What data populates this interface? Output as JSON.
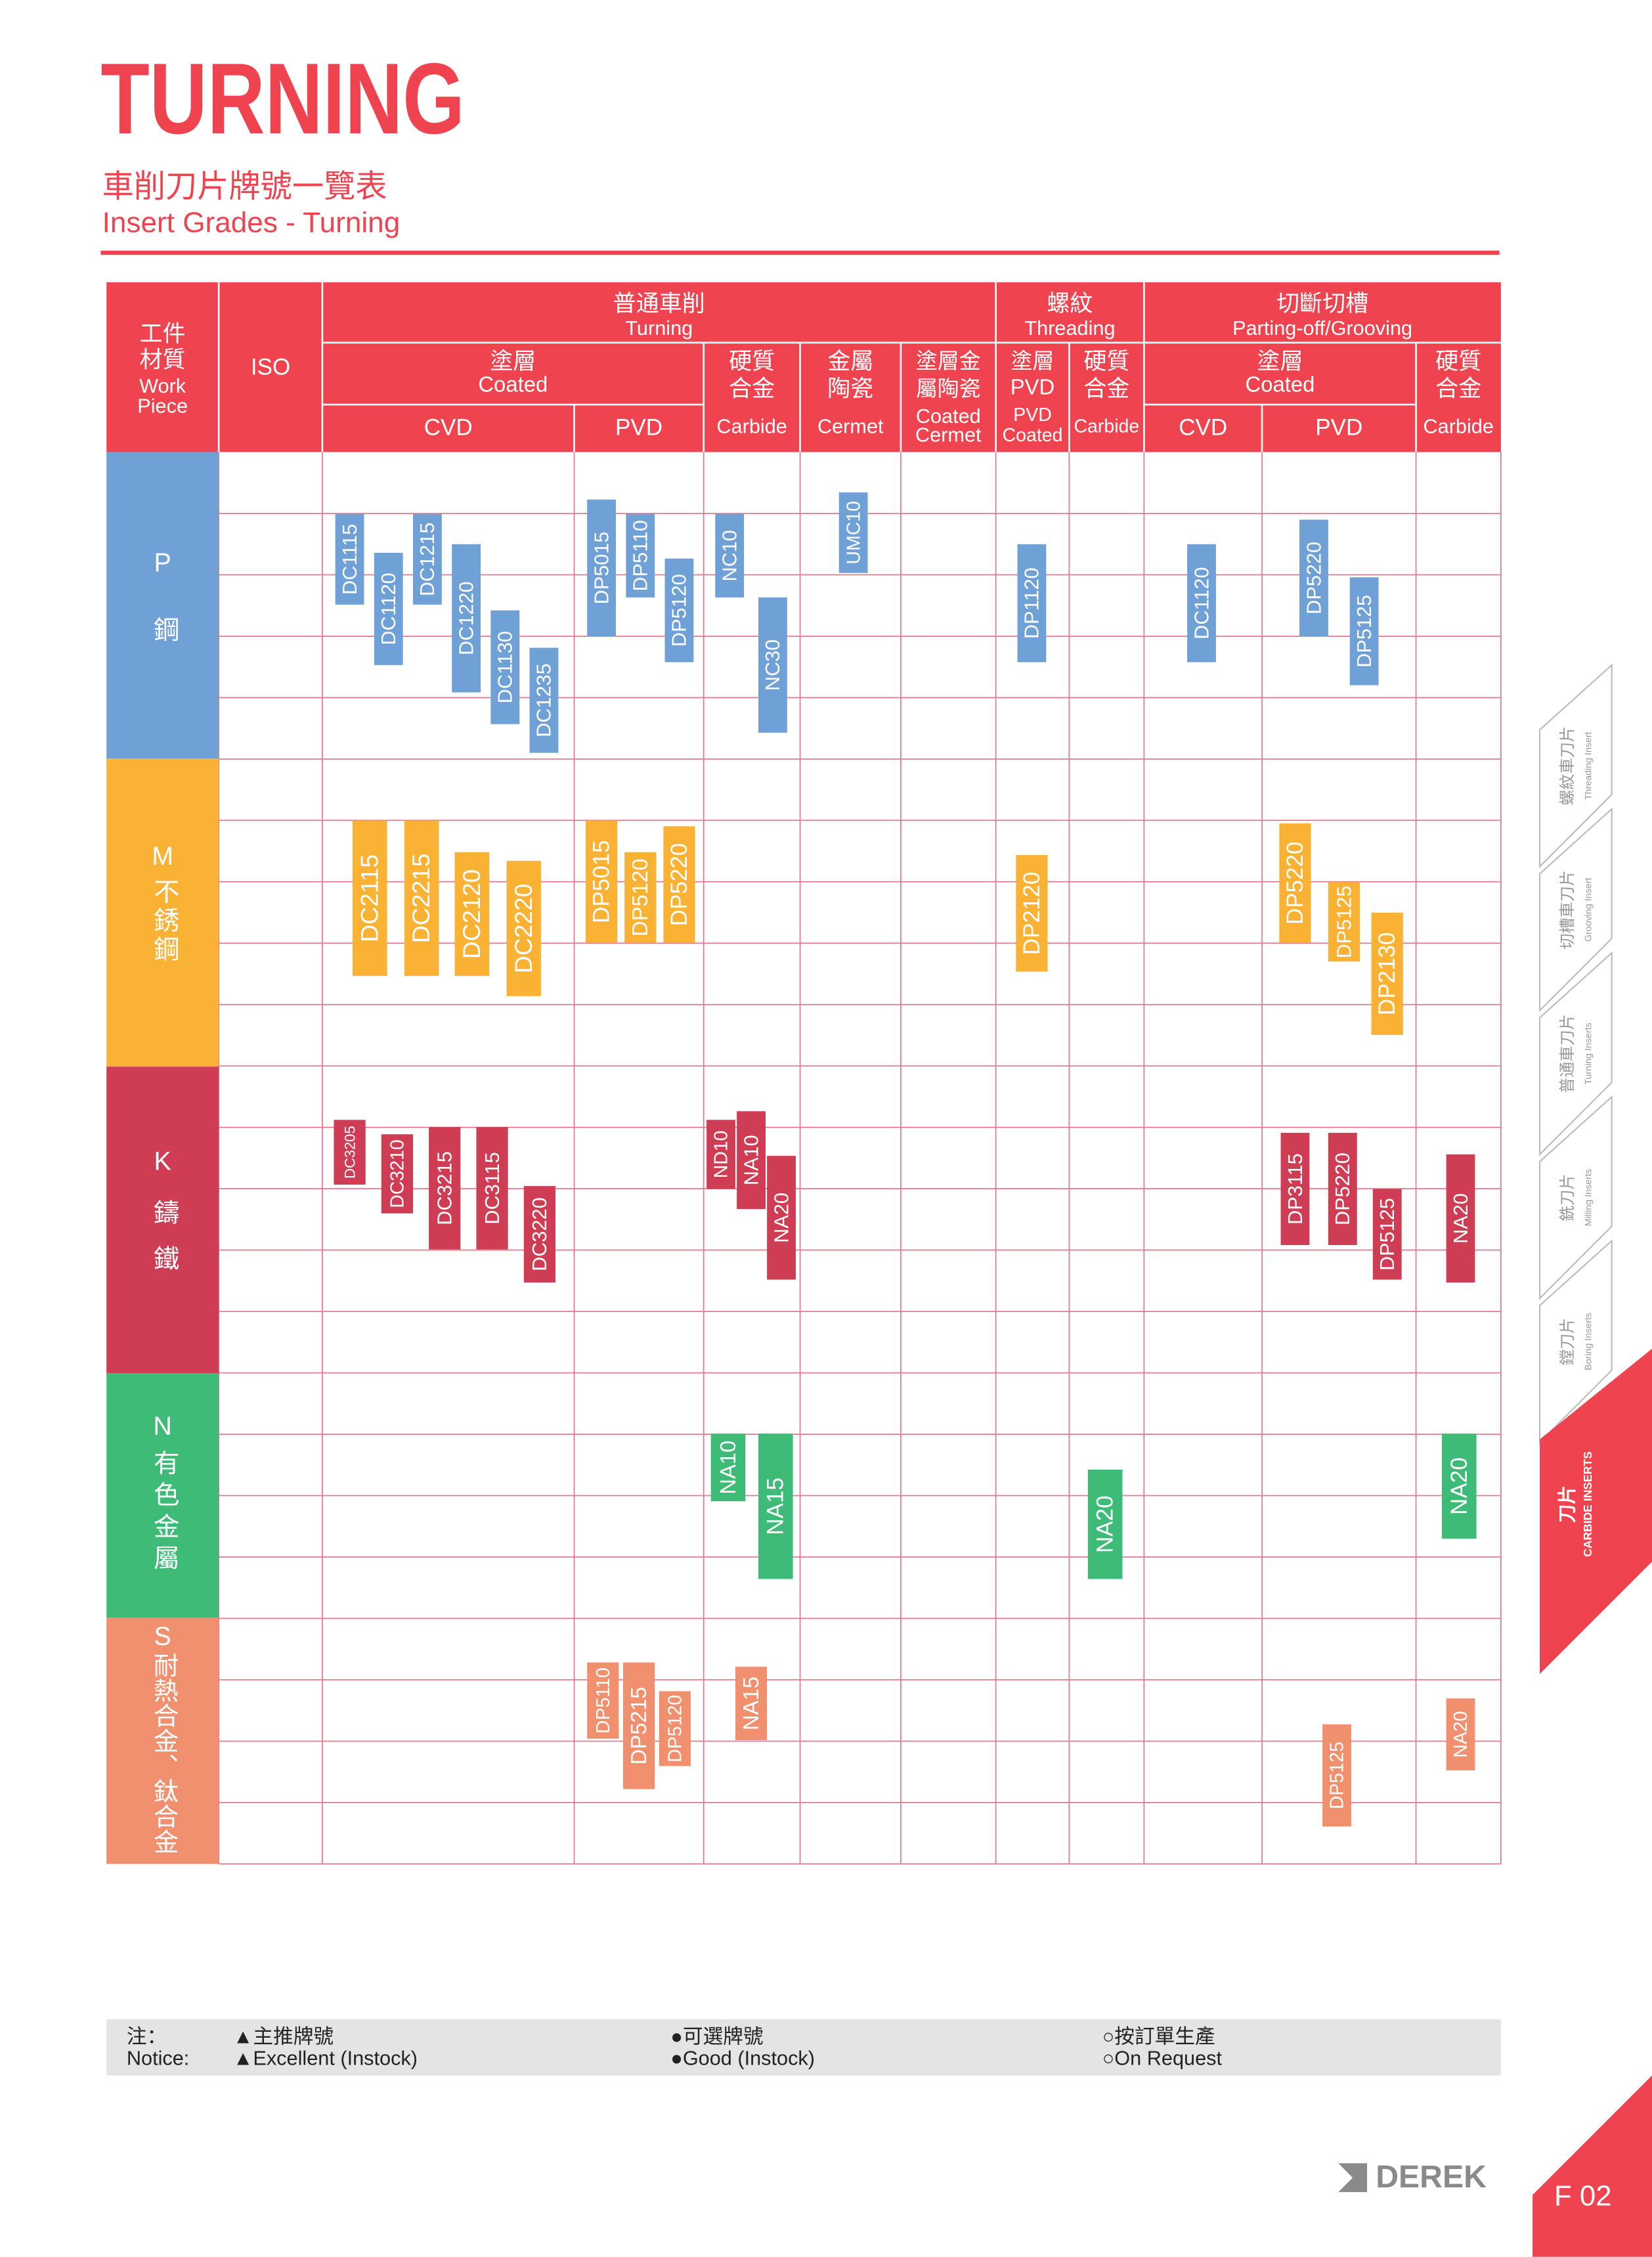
{
  "header": {
    "title": "TURNING",
    "subtitle_zh": "車削刀片牌號一覽表",
    "subtitle_en": "Insert Grades - Turning"
  },
  "table": {
    "head": [
      {
        "lines": [
          "工件",
          "材質",
          "Work",
          "Piece"
        ]
      },
      {
        "lines": [
          "ISO"
        ]
      },
      {
        "lines": [
          "普通車削",
          "Turning"
        ]
      },
      {
        "lines": [
          "螺紋",
          "Threading"
        ]
      },
      {
        "lines": [
          "切斷切槽",
          "Parting-off/Grooving"
        ]
      },
      {
        "lines": [
          "塗層",
          "Coated"
        ]
      },
      {
        "lines": [
          "硬質",
          "合金",
          "Carbide"
        ]
      },
      {
        "lines": [
          "金屬",
          "陶瓷",
          "Cermet"
        ]
      },
      {
        "lines": [
          "塗層金",
          "屬陶瓷",
          "Coated",
          "Cermet"
        ]
      },
      {
        "lines": [
          "塗層",
          "PVD",
          "PVD",
          "Coated"
        ]
      },
      {
        "lines": [
          "硬質",
          "合金",
          "Carbide"
        ]
      },
      {
        "lines": [
          "塗層",
          "Coated"
        ]
      },
      {
        "lines": [
          "硬質",
          "合金",
          "Carbide"
        ]
      },
      {
        "lines": [
          "CVD"
        ]
      },
      {
        "lines": [
          "PVD"
        ]
      },
      {
        "lines": [
          "CVD"
        ]
      },
      {
        "lines": [
          "PVD"
        ]
      }
    ],
    "materials": [
      {
        "code": "P",
        "name": "鋼",
        "color": "#6fa1d6",
        "grades": [
          "DC1115",
          "DC1120",
          "DC1215",
          "DC1220",
          "DC1130",
          "DC1235",
          "DP5015",
          "DP5110",
          "DP5120",
          "NC10",
          "NC30",
          "UMC10",
          "DP1120",
          "DC1120",
          "DP5220",
          "DP5125"
        ]
      },
      {
        "code": "M",
        "name": "不銹鋼",
        "color": "#f9b233",
        "grades": [
          "DC2115",
          "DC2215",
          "DC2120",
          "DC2220",
          "DP5015",
          "DP5120",
          "DP5220",
          "DP2120",
          "DP5220",
          "DP5125",
          "DP2130"
        ]
      },
      {
        "code": "K",
        "name": "鑄鐵",
        "color": "#cf3d55",
        "grades": [
          "DC3205",
          "DC3210",
          "DC3215",
          "DC3115",
          "DC3220",
          "ND10",
          "NA10",
          "NA20",
          "DP3115",
          "DP5220",
          "DP5125",
          "NA20"
        ]
      },
      {
        "code": "N",
        "name": "有色金屬",
        "color": "#3dbb77",
        "grades": [
          "NA10",
          "NA15",
          "NA20",
          "NA20"
        ]
      },
      {
        "code": "S",
        "name": "耐熱合金、鈦合金",
        "color": "#f1906e",
        "grades": [
          "DP5110",
          "DP5215",
          "DP5120",
          "NA15",
          "DP5125",
          "NA20"
        ]
      }
    ]
  },
  "notice": {
    "label_zh": "注：",
    "label_en": "Notice:",
    "items": [
      {
        "zh": "▲主推牌號",
        "en": "▲Excellent (Instock)"
      },
      {
        "zh": "●可選牌號",
        "en": "●Good (Instock)"
      },
      {
        "zh": "○按訂單生產",
        "en": "○On Request"
      }
    ]
  },
  "tabs": [
    {
      "zh": "螺紋車刀片",
      "en": "Threading Insert"
    },
    {
      "zh": "切槽車刀片",
      "en": "Grooving Insert"
    },
    {
      "zh": "普通車刀片",
      "en": "Turning Inserts"
    },
    {
      "zh": "銑刀片",
      "en": "Milling Inserts"
    },
    {
      "zh": "鏜刀片",
      "en": "Boring Inserts"
    },
    {
      "zh": "刀片",
      "en": "CARBIDE INSERTS"
    }
  ],
  "footer": {
    "brand": "DEREK",
    "page": "F 02"
  }
}
